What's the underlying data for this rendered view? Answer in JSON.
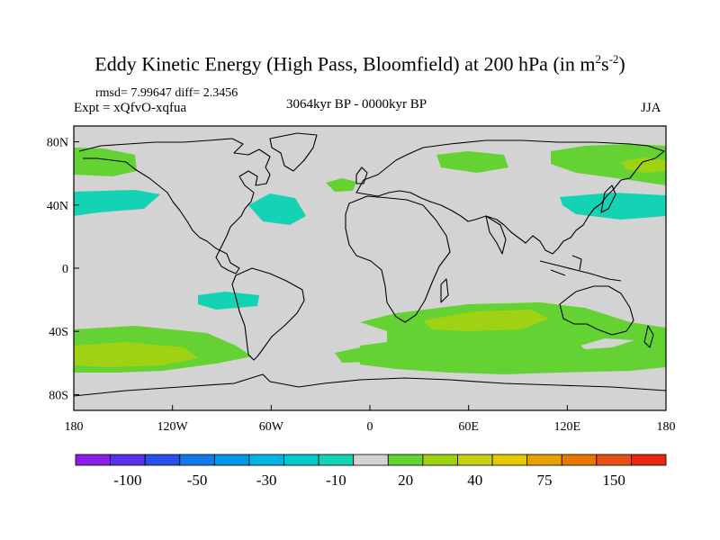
{
  "title": {
    "main": "Eddy Kinetic Energy (High Pass, Bloomfield) at 200 hPa (in m",
    "sup1": "2",
    "mid": "s",
    "sup2": "-2",
    "end": ")"
  },
  "stats": "rmsd= 7.99647 diff= 2.3456",
  "experiment": "Expt = xQfvO-xqfua",
  "period": "3064kyr BP - 0000kyr BP",
  "season": "JJA",
  "map": {
    "lon_ticks": [
      {
        "value": 180,
        "label": "180"
      },
      {
        "value": -120,
        "label": "120W"
      },
      {
        "value": -60,
        "label": "60W"
      },
      {
        "value": 0,
        "label": "0"
      },
      {
        "value": 60,
        "label": "60E"
      },
      {
        "value": 120,
        "label": "120E"
      },
      {
        "value": 180,
        "label": "180"
      }
    ],
    "lat_ticks": [
      {
        "value": 80,
        "label": "80N"
      },
      {
        "value": 40,
        "label": "40N"
      },
      {
        "value": 0,
        "label": "0"
      },
      {
        "value": -40,
        "label": "40S"
      },
      {
        "value": -80,
        "label": "80S"
      }
    ],
    "background_color": "#d3d3d3"
  },
  "colorbar": {
    "colors": [
      "#8c1ee6",
      "#5a32e6",
      "#2850e6",
      "#1478e6",
      "#0096e6",
      "#00b4e6",
      "#00c8d2",
      "#14d2b4",
      "#d3d3d3",
      "#64d232",
      "#a0d214",
      "#c8d214",
      "#e6c800",
      "#e6a000",
      "#e67800",
      "#e65014",
      "#e62814"
    ],
    "labels": [
      "-100",
      "-50",
      "-30",
      "-10",
      "20",
      "40",
      "75",
      "150"
    ],
    "label_after_box": [
      1,
      3,
      5,
      7,
      9,
      11,
      13,
      15
    ]
  }
}
